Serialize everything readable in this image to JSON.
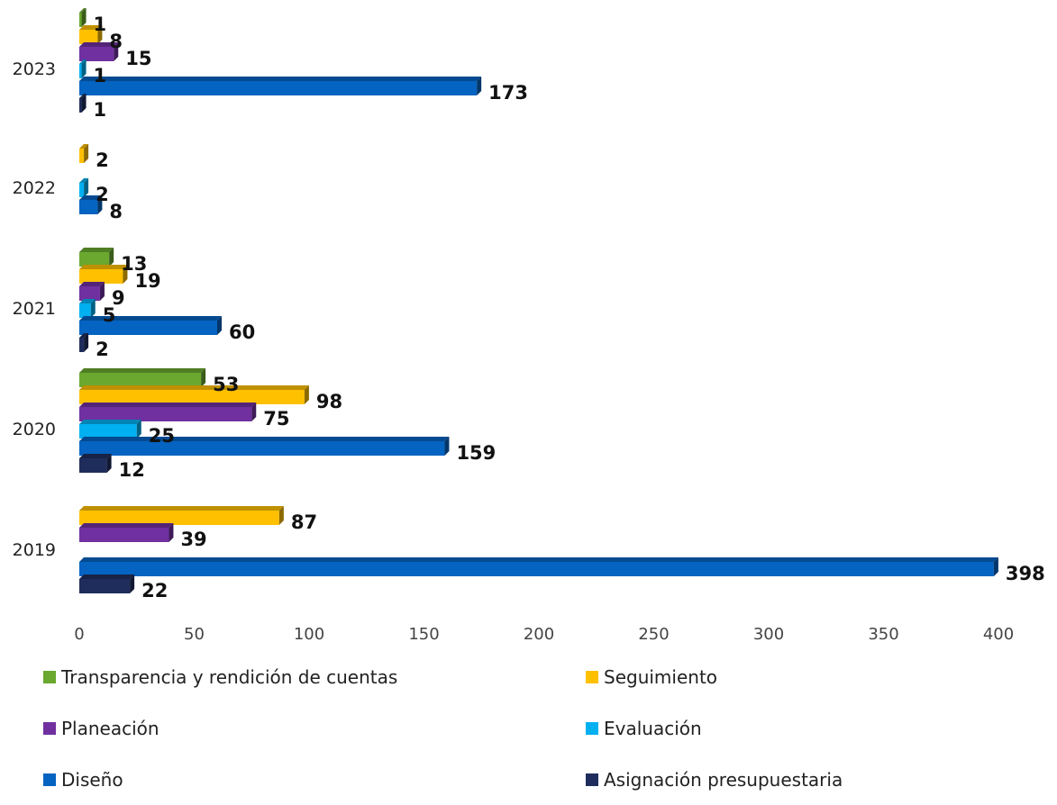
{
  "chart_data": {
    "type": "bar",
    "orientation": "horizontal",
    "style": "3d",
    "categories": [
      "2023",
      "2022",
      "2021",
      "2020",
      "2019"
    ],
    "series": [
      {
        "name": "Transparencia y rendición de cuentas",
        "color": "#6aa82f",
        "values": [
          1,
          null,
          13,
          53,
          null
        ]
      },
      {
        "name": "Seguimiento",
        "color": "#ffc000",
        "values": [
          8,
          2,
          19,
          98,
          87
        ]
      },
      {
        "name": "Planeación",
        "color": "#7030a0",
        "values": [
          15,
          null,
          9,
          75,
          39
        ]
      },
      {
        "name": "Evaluación",
        "color": "#00b0f0",
        "values": [
          1,
          2,
          5,
          25,
          null
        ]
      },
      {
        "name": "Diseño",
        "color": "#0563c1",
        "values": [
          173,
          8,
          60,
          159,
          398
        ]
      },
      {
        "name": "Asignación presupuestaria",
        "color": "#1f2d5c",
        "values": [
          1,
          null,
          2,
          12,
          22
        ]
      }
    ],
    "xlim": [
      0,
      400
    ],
    "xticks": [
      0,
      50,
      100,
      150,
      200,
      250,
      300,
      350,
      400
    ],
    "grid": false,
    "legend_position": "bottom",
    "title": "",
    "xlabel": "",
    "ylabel": ""
  }
}
